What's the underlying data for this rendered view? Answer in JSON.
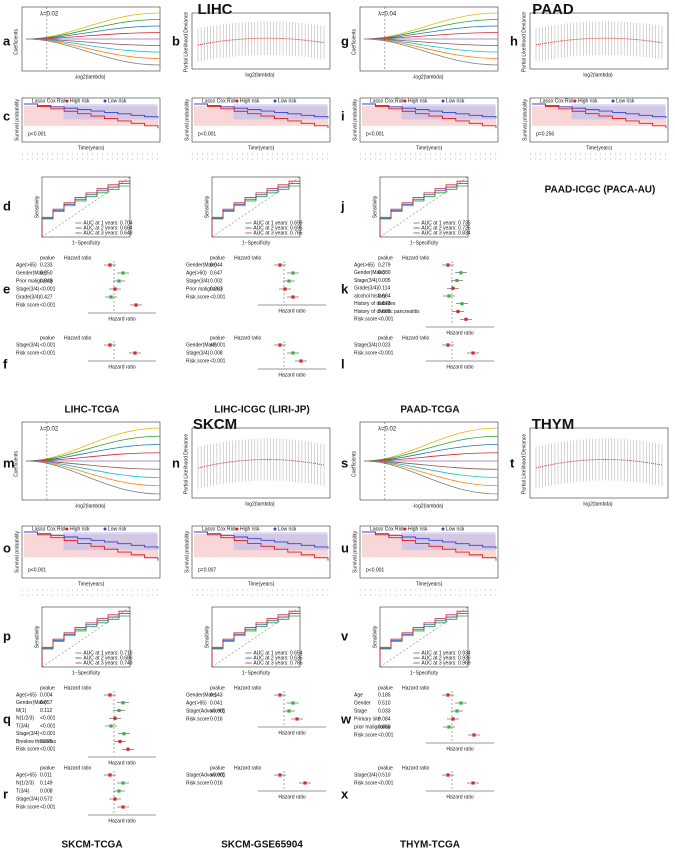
{
  "sections": [
    {
      "title": "LIHC",
      "lambda": "λ=0.02",
      "lasso_letter": "a",
      "likelihood_letter": "b",
      "cohorts": [
        {
          "label": "LIHC-TCGA",
          "letters": {
            "km": "c",
            "roc": "d",
            "uni": "e",
            "multi": "f"
          },
          "km_p": "p<0.001",
          "roc": [
            "AUC at 1 years: 0.704",
            "AUC at 2 years: 0.684",
            "AUC at 3 years: 0.648"
          ],
          "uni": [
            {
              "label": "Age(>65)",
              "p": "0.233"
            },
            {
              "label": "Gender(Male)",
              "p": "0.250"
            },
            {
              "label": "Prior malignancy",
              "p": "0.848"
            },
            {
              "label": "Stage(3/4)",
              "p": "<0.001"
            },
            {
              "label": "Grade(3/4)",
              "p": "0.427"
            },
            {
              "label": "Risk score",
              "p": "<0.001"
            }
          ],
          "multi": [
            {
              "label": "Stage(3/4)",
              "p": "<0.001"
            },
            {
              "label": "Risk score",
              "p": "<0.001"
            }
          ]
        },
        {
          "label": "LIHC-ICGC (LIRI-JP)",
          "km_p": "p<0.001",
          "roc": [
            "AUC at 1 years: 0.699",
            "AUC at 2 years: 0.695",
            "AUC at 3 years: 0.765"
          ],
          "uni": [
            {
              "label": "Gender(Male)",
              "p": "0.044"
            },
            {
              "label": "Age(>60)",
              "p": "0.647"
            },
            {
              "label": "Stage(3/4)",
              "p": "0.002"
            },
            {
              "label": "Prior malignancy",
              "p": "0.207"
            },
            {
              "label": "Risk score",
              "p": "<0.001"
            }
          ],
          "multi": [
            {
              "label": "Gender(Male)",
              "p": "<0.001"
            },
            {
              "label": "Stage(3/4)",
              "p": "0.008"
            },
            {
              "label": "Risk score",
              "p": "<0.001"
            }
          ]
        }
      ]
    },
    {
      "title": "PAAD",
      "lambda": "λ=0.04",
      "lasso_letter": "g",
      "likelihood_letter": "h",
      "cohorts": [
        {
          "label": "PAAD-TCGA",
          "letters": {
            "km": "i",
            "roc": "j",
            "uni": "k",
            "multi": "l"
          },
          "km_p": "p<0.001",
          "roc": [
            "AUC at 1 years: 0.735",
            "AUC at 2 years: 0.725",
            "AUC at 3 years: 0.834"
          ],
          "uni": [
            {
              "label": "Age(>65)",
              "p": "0.279"
            },
            {
              "label": "Gender(Male)",
              "p": "0.380"
            },
            {
              "label": "Stage(3/4)",
              "p": "0.005"
            },
            {
              "label": "Grade(3/4)",
              "p": "0.114"
            },
            {
              "label": "alcohol history",
              "p": "0.984"
            },
            {
              "label": "History of diabetes",
              "p": "0.672"
            },
            {
              "label": "History of chronic pancreatitis",
              "p": "0.605"
            },
            {
              "label": "Risk score",
              "p": "<0.001"
            }
          ],
          "multi": [
            {
              "label": "Stage(3/4)",
              "p": "0.023"
            },
            {
              "label": "Risk score",
              "p": "<0.001"
            }
          ]
        },
        {
          "label": "PAAD-ICGC (PACA-AU)",
          "km_p": "p=0.256"
        }
      ]
    },
    {
      "title": "SKCM",
      "lambda": "λ=0.02",
      "lasso_letter": "m",
      "likelihood_letter": "n",
      "cohorts": [
        {
          "label": "SKCM-TCGA",
          "letters": {
            "km": "o",
            "roc": "p",
            "uni": "q",
            "multi": "r"
          },
          "km_p": "p<0.001",
          "roc": [
            "AUC at 1 years: 0.716",
            "AUC at 2 years: 0.686",
            "AUC at 3 years: 0.749"
          ],
          "uni": [
            {
              "label": "Age(>65)",
              "p": "0.004"
            },
            {
              "label": "Gender(Male)",
              "p": "0.857"
            },
            {
              "label": "M(1)",
              "p": "0.112"
            },
            {
              "label": "N(1/2/3)",
              "p": "<0.001"
            },
            {
              "label": "T(3/4)",
              "p": "<0.001"
            },
            {
              "label": "Stage(3/4)",
              "p": "<0.001"
            },
            {
              "label": "Breslow thickness",
              "p": "0.225"
            },
            {
              "label": "Risk score",
              "p": "<0.001"
            }
          ],
          "multi": [
            {
              "label": "Age(>65)",
              "p": "0.011"
            },
            {
              "label": "N(1/2/3)",
              "p": "0.149"
            },
            {
              "label": "T(3/4)",
              "p": "0.008"
            },
            {
              "label": "Stage(3/4)",
              "p": "0.572"
            },
            {
              "label": "Risk score",
              "p": "<0.001"
            }
          ]
        },
        {
          "label": "SKCM-GSE65904",
          "km_p": "p=0.007",
          "roc": [
            "AUC at 1 years: 0.654",
            "AUC at 2 years: 0.635",
            "AUC at 3 years: 0.766"
          ],
          "uni": [
            {
              "label": "Gender(Male)",
              "p": "0.143"
            },
            {
              "label": "Age(>65)",
              "p": "0.041"
            },
            {
              "label": "Stage(Advanced)",
              "p": "<0.001"
            },
            {
              "label": "Risk score",
              "p": "0.016"
            }
          ],
          "multi": [
            {
              "label": "Stage(Advanced)",
              "p": "<0.001"
            },
            {
              "label": "Risk score",
              "p": "0.016"
            }
          ]
        }
      ]
    },
    {
      "title": "THYM",
      "lambda": "λ=0.02",
      "lasso_letter": "s",
      "likelihood_letter": "t",
      "cohorts": [
        {
          "label": "THYM-TCGA",
          "letters": {
            "km": "u",
            "roc": "v",
            "uni": "w",
            "multi": "x"
          },
          "km_p": "p<0.001",
          "roc": [
            "AUC at 1 years: 0.934",
            "AUC at 2 years: 0.936",
            "AUC at 3 years: 0.969"
          ],
          "uni": [
            {
              "label": "Age",
              "p": "0.185"
            },
            {
              "label": "Gender",
              "p": "0.510"
            },
            {
              "label": "Stage",
              "p": "0.033"
            },
            {
              "label": "Primary site",
              "p": "0.084"
            },
            {
              "label": "prior malignancy",
              "p": "0.858"
            },
            {
              "label": "Risk score",
              "p": "<0.001"
            }
          ],
          "multi": [
            {
              "label": "Stage(3/4)",
              "p": "0.510"
            },
            {
              "label": "Risk score",
              "p": "<0.001"
            }
          ]
        }
      ]
    }
  ],
  "axis_labels": {
    "coefficients": "Coefficients",
    "neg_log_lambda": "-log2(lambda)",
    "deviance": "Partial Likelihood Deviance",
    "log_lambda": "log2(lambda)",
    "survival": "Survival probability",
    "time": "Time(years)",
    "sensitivity": "Sensitivity",
    "specificity": "1−Specificity",
    "hazard": "Hazard ratio"
  },
  "km_legend": [
    "Lasso Cox Risk",
    "High risk",
    "Low risk"
  ],
  "forest_headers": [
    "pvalue",
    "Hazard ratio"
  ]
}
